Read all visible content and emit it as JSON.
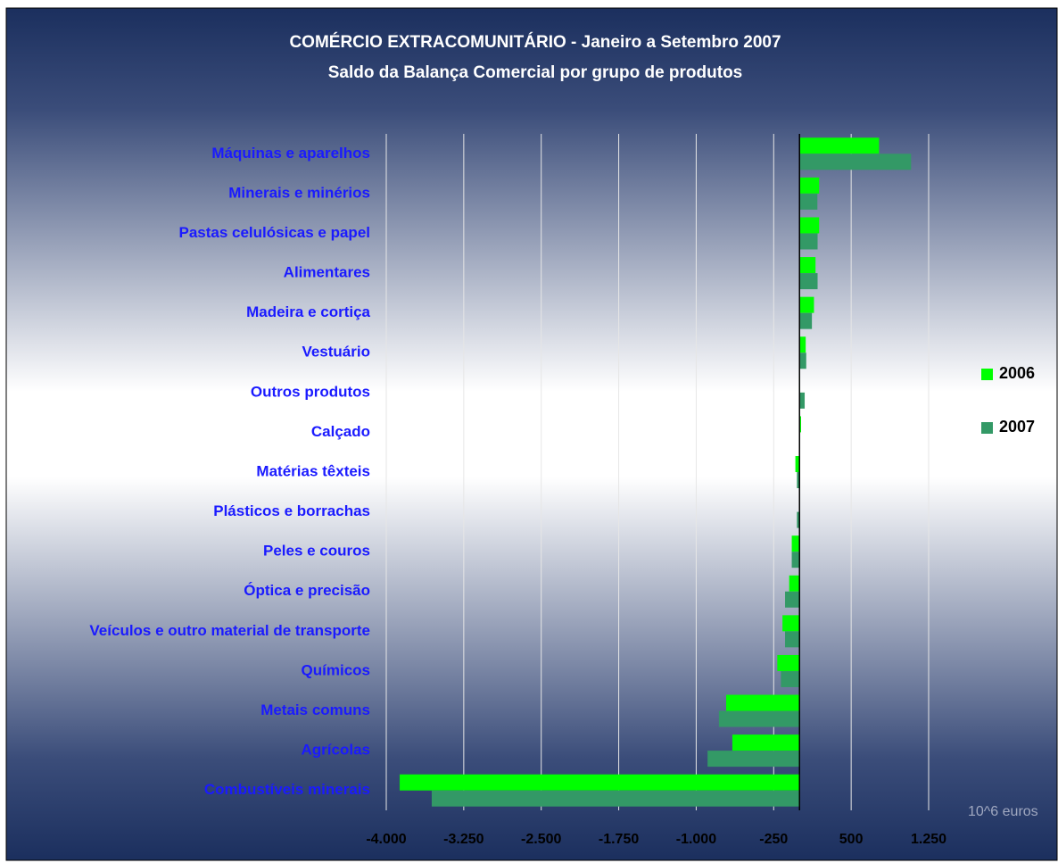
{
  "chart_data": {
    "type": "barh",
    "title": "COMÉRCIO EXTRACOMUNITÁRIO - Janeiro a Setembro 2007",
    "subtitle": "Saldo da Balança Comercial por grupo de produtos",
    "x_label": "10^6 euros",
    "categories": [
      "Máquinas e aparelhos",
      "Minerais e minérios",
      "Pastas celulósicas e papel",
      "Alimentares",
      "Madeira e cortiça",
      "Vestuário",
      "Outros produtos",
      "Calçado",
      "Matérias têxteis",
      "Plásticos e borrachas",
      "Peles e couros",
      "Óptica e precisão",
      "Veículos e outro material de transporte",
      "Químicos",
      "Metais comuns",
      "Agrícolas",
      "Combustíveis minerais"
    ],
    "series": [
      {
        "name": "2006",
        "color": "#00ff00",
        "values": [
          770,
          190,
          190,
          155,
          140,
          60,
          5,
          15,
          -40,
          -5,
          -75,
          -100,
          -165,
          -215,
          -710,
          -650,
          -3870
        ]
      },
      {
        "name": "2007",
        "color": "#339966",
        "values": [
          1080,
          173,
          175,
          175,
          120,
          65,
          50,
          5,
          -25,
          -25,
          -75,
          -140,
          -140,
          -180,
          -780,
          -890,
          -3560
        ]
      }
    ],
    "xlim": [
      -4000,
      1250
    ],
    "xticks": [
      {
        "value": -4000,
        "label": "-4.000"
      },
      {
        "value": -3250,
        "label": "-3.250"
      },
      {
        "value": -2500,
        "label": "-2.500"
      },
      {
        "value": -1750,
        "label": "-1.750"
      },
      {
        "value": -1000,
        "label": "-1.000"
      },
      -250,
      500,
      {
        "value": 1250,
        "label": "1.250"
      }
    ],
    "grid": true,
    "legend": "right"
  }
}
